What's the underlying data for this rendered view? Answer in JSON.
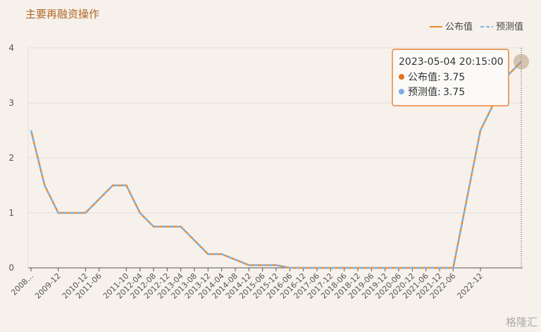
{
  "chart_data": {
    "type": "line",
    "title": "主要再融资操作",
    "categories": [
      "2008…",
      null,
      "2009-12",
      null,
      "2010-12",
      "2011-06",
      null,
      "2011-10",
      "2012-04",
      "2012-08",
      "2012-12",
      "2013-04",
      "2013-08",
      "2013-12",
      "2014-04",
      "2014-08",
      "2014-12",
      "2015-06",
      "2015-12",
      "2016-06",
      "2016-12",
      "2017-06",
      "2017-12",
      "2018-06",
      "2018-12",
      "2019-06",
      "2019-12",
      "2020-06",
      "2020-12",
      "2021-06",
      "2021-12",
      "2022-06",
      null,
      "2022-12",
      null,
      null,
      null
    ],
    "series": [
      {
        "name": "公布值",
        "color": "#f08a24",
        "dash": false,
        "values": [
          2.5,
          1.5,
          1.0,
          1.0,
          1.0,
          1.25,
          1.5,
          1.5,
          1.0,
          0.75,
          0.75,
          0.75,
          0.5,
          0.25,
          0.25,
          0.15,
          0.05,
          0.05,
          0.05,
          0,
          0,
          0,
          0,
          0,
          0,
          0,
          0,
          0,
          0,
          0,
          0,
          0,
          1.25,
          2.5,
          3.0,
          3.5,
          3.75
        ]
      },
      {
        "name": "预测值",
        "color": "#7fb2e5",
        "dash": true,
        "values": [
          2.5,
          1.5,
          1.0,
          1.0,
          1.0,
          1.25,
          1.5,
          1.5,
          1.0,
          0.75,
          0.75,
          0.75,
          0.5,
          0.25,
          0.25,
          0.15,
          0.05,
          0.05,
          0.05,
          0,
          0,
          0,
          0,
          0,
          0,
          0,
          0,
          0,
          0,
          0,
          0,
          0,
          1.25,
          2.5,
          3.0,
          3.5,
          3.75
        ]
      }
    ],
    "ylim": [
      0,
      4
    ],
    "yticks": [
      0,
      1,
      2,
      3,
      4
    ],
    "grid": true,
    "legend": "top-right",
    "tooltip": {
      "time": "2023-05-04 20:15:00",
      "items": [
        {
          "label": "公布值:",
          "value": 3.75,
          "color": "#e8711c"
        },
        {
          "label": "预测值:",
          "value": 3.75,
          "color": "#7eaee0"
        }
      ]
    },
    "watermark": "格隆汇"
  }
}
